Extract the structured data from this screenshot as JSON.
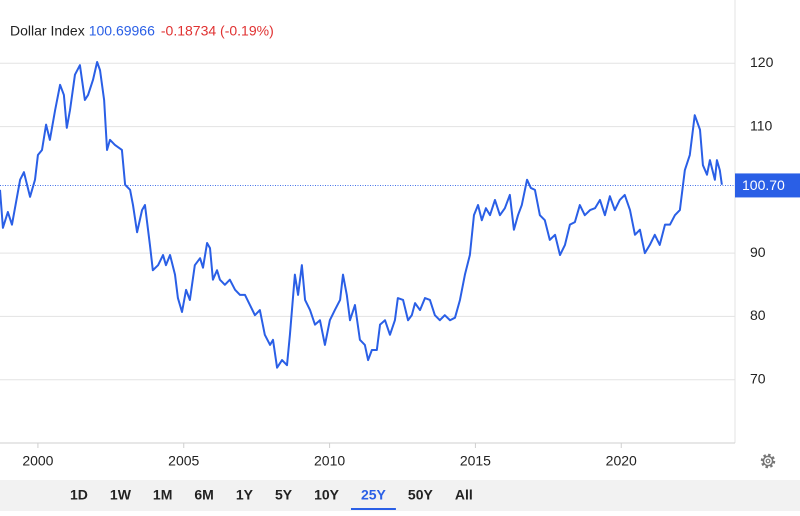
{
  "chart_data": {
    "type": "line",
    "title": "Dollar Index",
    "last": {
      "value": 100.69966,
      "label": "100.70"
    },
    "change": "-0.18734 (-0.19%)",
    "ranges": [
      "1D",
      "1W",
      "1M",
      "6M",
      "1Y",
      "5Y",
      "10Y",
      "25Y",
      "50Y",
      "All"
    ],
    "active_range": 7,
    "xlim": [
      1998.7,
      2023.9
    ],
    "xticks": [
      2000,
      2005,
      2010,
      2015,
      2020
    ],
    "ylim": [
      60,
      130
    ],
    "yticks": [
      70,
      80,
      90,
      110,
      120
    ],
    "grid": true,
    "x": [
      1998.7,
      1998.8,
      1998.97,
      1999.11,
      1999.39,
      1999.52,
      1999.73,
      1999.9,
      2000.0,
      2000.14,
      2000.28,
      2000.41,
      2000.59,
      2000.76,
      2000.89,
      2000.99,
      2001.1,
      2001.27,
      2001.44,
      2001.61,
      2001.72,
      2001.89,
      2002.03,
      2002.13,
      2002.27,
      2002.37,
      2002.47,
      2002.64,
      2002.88,
      2002.99,
      2003.16,
      2003.26,
      2003.4,
      2003.57,
      2003.67,
      2003.84,
      2003.94,
      2004.12,
      2004.29,
      2004.39,
      2004.53,
      2004.7,
      2004.8,
      2004.94,
      2005.08,
      2005.21,
      2005.38,
      2005.56,
      2005.66,
      2005.8,
      2005.9,
      2006.0,
      2006.14,
      2006.24,
      2006.41,
      2006.58,
      2006.76,
      2006.93,
      2007.1,
      2007.27,
      2007.44,
      2007.61,
      2007.78,
      2007.96,
      2008.06,
      2008.2,
      2008.37,
      2008.54,
      2008.64,
      2008.81,
      2008.92,
      2009.05,
      2009.16,
      2009.33,
      2009.5,
      2009.67,
      2009.84,
      2010.01,
      2010.18,
      2010.36,
      2010.46,
      2010.59,
      2010.7,
      2010.87,
      2011.04,
      2011.21,
      2011.32,
      2011.45,
      2011.62,
      2011.73,
      2011.9,
      2012.07,
      2012.24,
      2012.34,
      2012.52,
      2012.69,
      2012.82,
      2012.93,
      2013.1,
      2013.27,
      2013.44,
      2013.61,
      2013.78,
      2013.95,
      2014.13,
      2014.3,
      2014.47,
      2014.64,
      2014.81,
      2014.95,
      2015.09,
      2015.22,
      2015.36,
      2015.5,
      2015.67,
      2015.84,
      2016.01,
      2016.18,
      2016.32,
      2016.46,
      2016.59,
      2016.77,
      2016.9,
      2017.04,
      2017.21,
      2017.38,
      2017.55,
      2017.73,
      2017.9,
      2018.07,
      2018.24,
      2018.41,
      2018.58,
      2018.75,
      2018.93,
      2019.1,
      2019.27,
      2019.44,
      2019.61,
      2019.78,
      2019.95,
      2020.12,
      2020.3,
      2020.47,
      2020.64,
      2020.81,
      2020.98,
      2021.15,
      2021.32,
      2021.5,
      2021.67,
      2021.84,
      2022.01,
      2022.18,
      2022.35,
      2022.52,
      2022.7,
      2022.8,
      2022.94,
      2023.04,
      2023.21,
      2023.28,
      2023.38,
      2023.45
    ],
    "series": [
      {
        "name": "Dollar Index",
        "color": "#2a5fe6",
        "values": [
          100.0,
          94.0,
          96.5,
          94.5,
          101.6,
          102.8,
          98.9,
          101.6,
          105.5,
          106.3,
          110.3,
          107.9,
          112.6,
          116.6,
          115.0,
          109.8,
          112.6,
          118.2,
          119.7,
          114.2,
          115.0,
          117.4,
          120.2,
          118.9,
          114.2,
          106.3,
          107.9,
          107.1,
          106.3,
          100.8,
          100.0,
          97.6,
          93.3,
          96.8,
          97.6,
          91.3,
          87.3,
          88.1,
          89.7,
          88.1,
          89.7,
          86.6,
          82.9,
          80.7,
          84.2,
          82.6,
          88.1,
          89.2,
          87.7,
          91.6,
          90.8,
          85.8,
          87.3,
          85.8,
          85.0,
          85.8,
          84.2,
          83.4,
          83.4,
          81.8,
          80.2,
          81.0,
          77.1,
          75.5,
          76.3,
          71.9,
          73.1,
          72.3,
          77.1,
          86.6,
          83.4,
          88.1,
          82.6,
          81.0,
          78.7,
          79.4,
          75.5,
          79.4,
          81.0,
          82.6,
          86.6,
          83.4,
          79.4,
          81.8,
          76.3,
          75.5,
          73.1,
          74.7,
          74.7,
          78.7,
          79.4,
          77.1,
          79.4,
          82.9,
          82.6,
          79.4,
          80.2,
          82.1,
          81.0,
          82.9,
          82.6,
          80.2,
          79.4,
          80.2,
          79.4,
          79.8,
          82.6,
          86.6,
          89.7,
          96.0,
          97.6,
          95.2,
          97.1,
          96.0,
          98.4,
          96.0,
          97.1,
          99.2,
          93.7,
          96.0,
          97.6,
          101.6,
          100.3,
          100.0,
          96.0,
          95.2,
          92.1,
          92.9,
          89.7,
          91.3,
          94.5,
          94.9,
          97.6,
          96.0,
          96.8,
          97.1,
          98.4,
          96.0,
          99.0,
          96.8,
          98.4,
          99.2,
          96.8,
          92.9,
          93.7,
          90.0,
          91.3,
          92.9,
          91.3,
          94.5,
          94.5,
          96.0,
          96.8,
          103.1,
          105.5,
          111.8,
          109.5,
          103.9,
          102.4,
          104.7,
          101.6,
          104.7,
          103.1,
          100.8
        ]
      }
    ]
  }
}
